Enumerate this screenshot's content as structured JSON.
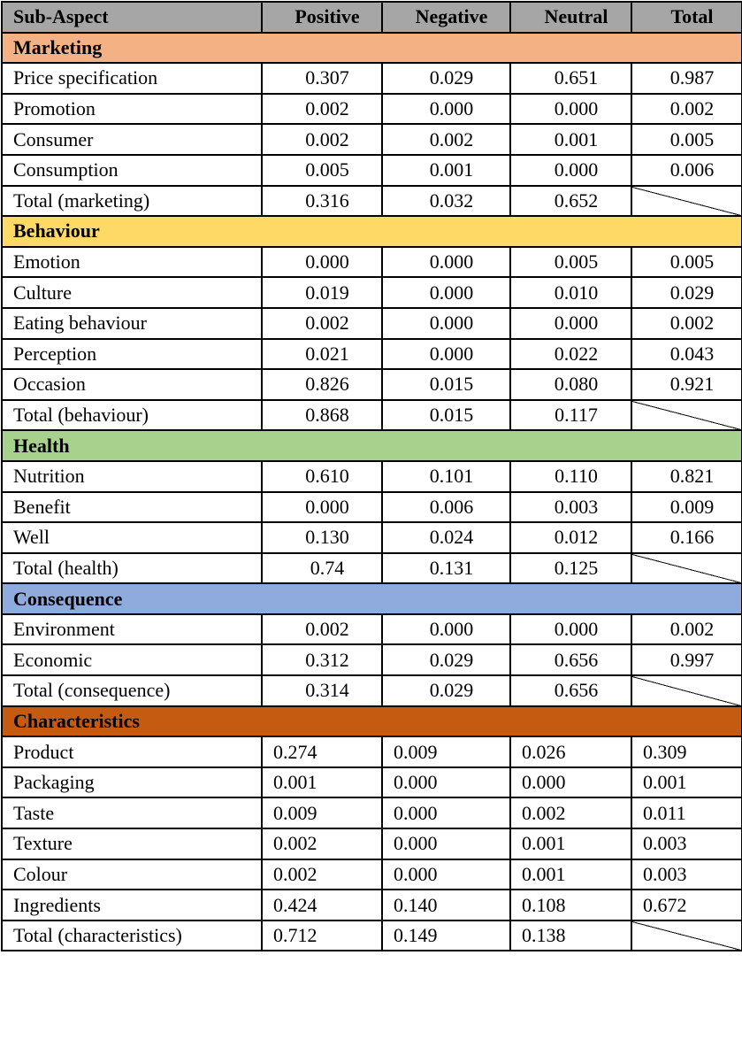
{
  "header": {
    "sub_aspect": "Sub-Aspect",
    "positive": "Positive",
    "negative": "Negative",
    "neutral": "Neutral",
    "total": "Total"
  },
  "sections": [
    {
      "title": "Marketing",
      "color": "#f4b183",
      "align": "center",
      "rows": [
        {
          "name": "Price specification",
          "pos": "0.307",
          "neg": "0.029",
          "neu": "0.651",
          "tot": "0.987"
        },
        {
          "name": "Promotion",
          "pos": "0.002",
          "neg": "0.000",
          "neu": "0.000",
          "tot": "0.002"
        },
        {
          "name": "Consumer",
          "pos": "0.002",
          "neg": "0.002",
          "neu": "0.001",
          "tot": "0.005"
        },
        {
          "name": "Consumption",
          "pos": "0.005",
          "neg": "0.001",
          "neu": "0.000",
          "tot": "0.006"
        },
        {
          "name": "Total (marketing)",
          "pos": "0.316",
          "neg": "0.032",
          "neu": "0.652",
          "tot": ""
        }
      ]
    },
    {
      "title": "Behaviour",
      "color": "#ffd966",
      "align": "center",
      "rows": [
        {
          "name": "Emotion",
          "pos": "0.000",
          "neg": "0.000",
          "neu": "0.005",
          "tot": "0.005"
        },
        {
          "name": "Culture",
          "pos": "0.019",
          "neg": "0.000",
          "neu": "0.010",
          "tot": "0.029"
        },
        {
          "name": "Eating behaviour",
          "pos": "0.002",
          "neg": "0.000",
          "neu": "0.000",
          "tot": "0.002"
        },
        {
          "name": "Perception",
          "pos": "0.021",
          "neg": "0.000",
          "neu": "0.022",
          "tot": "0.043"
        },
        {
          "name": "Occasion",
          "pos": "0.826",
          "neg": "0.015",
          "neu": "0.080",
          "tot": "0.921"
        },
        {
          "name": "Total (behaviour)",
          "pos": "0.868",
          "neg": "0.015",
          "neu": "0.117",
          "tot": ""
        }
      ]
    },
    {
      "title": "Health",
      "color": "#a9d18e",
      "align": "center",
      "rows": [
        {
          "name": "Nutrition",
          "pos": "0.610",
          "neg": "0.101",
          "neu": "0.110",
          "tot": "0.821"
        },
        {
          "name": "Benefit",
          "pos": "0.000",
          "neg": "0.006",
          "neu": "0.003",
          "tot": "0.009"
        },
        {
          "name": "Well",
          "pos": "0.130",
          "neg": "0.024",
          "neu": "0.012",
          "tot": "0.166"
        },
        {
          "name": "Total (health)",
          "pos": "0.74",
          "neg": "0.131",
          "neu": "0.125",
          "tot": ""
        }
      ]
    },
    {
      "title": "Consequence",
      "color": "#8faadc",
      "align": "center",
      "rows": [
        {
          "name": "Environment",
          "pos": "0.002",
          "neg": "0.000",
          "neu": "0.000",
          "tot": "0.002"
        },
        {
          "name": "Economic",
          "pos": "0.312",
          "neg": "0.029",
          "neu": "0.656",
          "tot": "0.997"
        },
        {
          "name": "Total (consequence)",
          "pos": "0.314",
          "neg": "0.029",
          "neu": "0.656",
          "tot": ""
        }
      ]
    },
    {
      "title": "Characteristics",
      "color": "#c55a11",
      "align": "left",
      "rows": [
        {
          "name": "Product",
          "pos": "0.274",
          "neg": "0.009",
          "neu": "0.026",
          "tot": "0.309"
        },
        {
          "name": "Packaging",
          "pos": "0.001",
          "neg": "0.000",
          "neu": "0.000",
          "tot": "0.001"
        },
        {
          "name": "Taste",
          "pos": "0.009",
          "neg": "0.000",
          "neu": "0.002",
          "tot": "0.011"
        },
        {
          "name": "Texture",
          "pos": "0.002",
          "neg": "0.000",
          "neu": "0.001",
          "tot": "0.003"
        },
        {
          "name": "Colour",
          "pos": "0.002",
          "neg": "0.000",
          "neu": "0.001",
          "tot": "0.003"
        },
        {
          "name": "Ingredients",
          "pos": "0.424",
          "neg": "0.140",
          "neu": "0.108",
          "tot": "0.672"
        },
        {
          "name": "Total (characteristics)",
          "pos": "0.712",
          "neg": "0.149",
          "neu": "0.138",
          "tot": ""
        }
      ]
    }
  ]
}
